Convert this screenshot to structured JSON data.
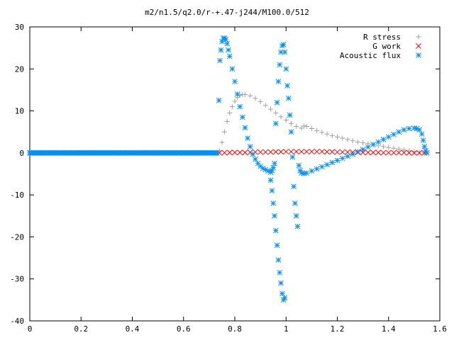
{
  "chart_data": {
    "type": "scatter",
    "title": "m2/n1.5/q2.0/r-+.47-j244/M100.0/512",
    "xlabel": "",
    "ylabel": "",
    "xlim": [
      0,
      1.6
    ],
    "ylim": [
      -40,
      30
    ],
    "x_ticks": [
      "0",
      "0.2",
      "0.4",
      "0.6",
      "0.8",
      "1",
      "1.2",
      "1.4",
      "1.6"
    ],
    "y_ticks": [
      "30",
      "20",
      "10",
      "0",
      "-10",
      "-20",
      "-30",
      "-40"
    ],
    "grid": false,
    "legend_position": "top-right",
    "series": [
      {
        "name": "R stress",
        "marker": "plus",
        "color": "#a0a0a0",
        "points": [
          [
            0.0,
            0
          ],
          [
            0.1,
            0
          ],
          [
            0.2,
            0
          ],
          [
            0.3,
            0
          ],
          [
            0.4,
            0
          ],
          [
            0.5,
            0
          ],
          [
            0.6,
            0
          ],
          [
            0.7,
            0
          ],
          [
            0.73,
            0
          ],
          [
            0.74,
            0.5
          ],
          [
            0.75,
            2.5
          ],
          [
            0.76,
            5
          ],
          [
            0.77,
            7.5
          ],
          [
            0.78,
            9.5
          ],
          [
            0.79,
            11
          ],
          [
            0.8,
            12.3
          ],
          [
            0.81,
            13.2
          ],
          [
            0.82,
            13.7
          ],
          [
            0.83,
            13.9
          ],
          [
            0.84,
            13.9
          ],
          [
            0.86,
            13.6
          ],
          [
            0.88,
            13.0
          ],
          [
            0.9,
            12.2
          ],
          [
            0.92,
            11.3
          ],
          [
            0.94,
            10.4
          ],
          [
            0.96,
            9.5
          ],
          [
            0.98,
            8.6
          ],
          [
            1.0,
            7.8
          ],
          [
            1.02,
            7.0
          ],
          [
            1.04,
            6.3
          ],
          [
            1.06,
            5.9
          ],
          [
            1.07,
            6.4
          ],
          [
            1.08,
            6.3
          ],
          [
            1.1,
            5.8
          ],
          [
            1.12,
            5.3
          ],
          [
            1.14,
            4.9
          ],
          [
            1.16,
            4.5
          ],
          [
            1.18,
            4.1
          ],
          [
            1.2,
            3.8
          ],
          [
            1.22,
            3.5
          ],
          [
            1.24,
            3.2
          ],
          [
            1.26,
            2.9
          ],
          [
            1.28,
            2.6
          ],
          [
            1.3,
            2.4
          ],
          [
            1.32,
            2.2
          ],
          [
            1.34,
            2.0
          ],
          [
            1.36,
            1.7
          ],
          [
            1.38,
            1.5
          ],
          [
            1.4,
            1.3
          ],
          [
            1.42,
            1.1
          ],
          [
            1.44,
            0.9
          ],
          [
            1.46,
            0.7
          ],
          [
            1.48,
            0.5
          ],
          [
            1.5,
            0.3
          ],
          [
            1.52,
            0.2
          ],
          [
            1.54,
            0.0
          ]
        ]
      },
      {
        "name": "G work",
        "marker": "cross",
        "color": "#ff0000",
        "points": [
          [
            0.74,
            0
          ],
          [
            0.76,
            0.05
          ],
          [
            0.78,
            0.1
          ],
          [
            0.8,
            0.1
          ],
          [
            0.82,
            0.1
          ],
          [
            0.84,
            0.1
          ],
          [
            0.86,
            0.15
          ],
          [
            0.88,
            0.2
          ],
          [
            0.9,
            0.2
          ],
          [
            0.92,
            0.2
          ],
          [
            0.94,
            0.2
          ],
          [
            0.96,
            0.25
          ],
          [
            0.98,
            0.25
          ],
          [
            1.0,
            0.3
          ],
          [
            1.02,
            0.3
          ],
          [
            1.04,
            0.3
          ],
          [
            1.06,
            0.3
          ],
          [
            1.08,
            0.3
          ],
          [
            1.1,
            0.3
          ],
          [
            1.12,
            0.3
          ],
          [
            1.14,
            0.3
          ],
          [
            1.16,
            0.25
          ],
          [
            1.18,
            0.25
          ],
          [
            1.2,
            0.2
          ],
          [
            1.22,
            0.2
          ],
          [
            1.24,
            0.2
          ],
          [
            1.26,
            0.15
          ],
          [
            1.28,
            0.15
          ],
          [
            1.3,
            0.1
          ],
          [
            1.32,
            0.1
          ],
          [
            1.34,
            0.1
          ],
          [
            1.36,
            0.1
          ],
          [
            1.38,
            0.05
          ],
          [
            1.4,
            0.05
          ],
          [
            1.42,
            0.05
          ],
          [
            1.44,
            0.05
          ],
          [
            1.46,
            0.05
          ],
          [
            1.48,
            0.0
          ],
          [
            1.5,
            0.0
          ],
          [
            1.52,
            0.0
          ],
          [
            1.54,
            0.0
          ]
        ]
      },
      {
        "name": "Acoustic flux",
        "marker": "star",
        "color": "#0a8ff0",
        "points": [
          [
            0.0,
            0
          ],
          [
            0.05,
            0
          ],
          [
            0.1,
            0
          ],
          [
            0.15,
            0
          ],
          [
            0.2,
            0
          ],
          [
            0.25,
            0
          ],
          [
            0.3,
            0
          ],
          [
            0.35,
            0
          ],
          [
            0.4,
            0
          ],
          [
            0.45,
            0
          ],
          [
            0.5,
            0
          ],
          [
            0.55,
            0
          ],
          [
            0.6,
            0
          ],
          [
            0.65,
            0
          ],
          [
            0.7,
            0
          ],
          [
            0.73,
            0
          ],
          [
            0.738,
            12.5
          ],
          [
            0.742,
            22
          ],
          [
            0.746,
            24.5
          ],
          [
            0.75,
            26.5
          ],
          [
            0.755,
            27.3
          ],
          [
            0.76,
            27.3
          ],
          [
            0.765,
            27
          ],
          [
            0.77,
            26
          ],
          [
            0.775,
            24.5
          ],
          [
            0.78,
            23
          ],
          [
            0.79,
            20
          ],
          [
            0.8,
            17
          ],
          [
            0.81,
            14
          ],
          [
            0.82,
            11
          ],
          [
            0.83,
            8.5
          ],
          [
            0.84,
            6
          ],
          [
            0.85,
            3.5
          ],
          [
            0.86,
            1.5
          ],
          [
            0.87,
            -0.3
          ],
          [
            0.88,
            -1.5
          ],
          [
            0.89,
            -2.5
          ],
          [
            0.9,
            -3.2
          ],
          [
            0.91,
            -3.7
          ],
          [
            0.92,
            -4.0
          ],
          [
            0.93,
            -4.3
          ],
          [
            0.94,
            -4.6
          ],
          [
            0.945,
            -4.2
          ],
          [
            0.95,
            -3.5
          ],
          [
            0.955,
            -2.5
          ],
          [
            0.94,
            -6.5
          ],
          [
            0.945,
            -9
          ],
          [
            0.95,
            -12
          ],
          [
            0.955,
            -15
          ],
          [
            0.96,
            -18.5
          ],
          [
            0.965,
            -22
          ],
          [
            0.97,
            -25.5
          ],
          [
            0.975,
            -28.5
          ],
          [
            0.98,
            -31
          ],
          [
            0.985,
            -33.5
          ],
          [
            0.99,
            -35
          ],
          [
            0.995,
            -34.5
          ],
          [
            0.96,
            7
          ],
          [
            0.965,
            12
          ],
          [
            0.97,
            17
          ],
          [
            0.975,
            21
          ],
          [
            0.98,
            24
          ],
          [
            0.985,
            25.5
          ],
          [
            0.99,
            25.8
          ],
          [
            0.995,
            24
          ],
          [
            1.0,
            20
          ],
          [
            1.005,
            16
          ],
          [
            1.01,
            13
          ],
          [
            1.015,
            9
          ],
          [
            1.02,
            5
          ],
          [
            1.025,
            -1
          ],
          [
            1.03,
            -8
          ],
          [
            1.035,
            -12
          ],
          [
            1.04,
            -15
          ],
          [
            1.045,
            -17.5
          ],
          [
            1.05,
            -3
          ],
          [
            1.055,
            -4.2
          ],
          [
            1.06,
            -4.8
          ],
          [
            1.07,
            -4.9
          ],
          [
            1.08,
            -4.8
          ],
          [
            1.1,
            -4.3
          ],
          [
            1.12,
            -3.8
          ],
          [
            1.14,
            -3.3
          ],
          [
            1.16,
            -2.8
          ],
          [
            1.18,
            -2.3
          ],
          [
            1.2,
            -1.8
          ],
          [
            1.22,
            -1.3
          ],
          [
            1.24,
            -0.8
          ],
          [
            1.26,
            -0.3
          ],
          [
            1.28,
            0.3
          ],
          [
            1.3,
            0.8
          ],
          [
            1.32,
            1.4
          ],
          [
            1.34,
            2.0
          ],
          [
            1.36,
            2.6
          ],
          [
            1.38,
            3.2
          ],
          [
            1.4,
            3.8
          ],
          [
            1.42,
            4.4
          ],
          [
            1.44,
            5.0
          ],
          [
            1.46,
            5.5
          ],
          [
            1.48,
            5.8
          ],
          [
            1.5,
            5.9
          ],
          [
            1.51,
            5.8
          ],
          [
            1.52,
            5.5
          ],
          [
            1.53,
            4.5
          ],
          [
            1.535,
            3.0
          ],
          [
            1.54,
            1.5
          ],
          [
            1.545,
            0.5
          ],
          [
            1.55,
            0
          ]
        ]
      }
    ]
  }
}
